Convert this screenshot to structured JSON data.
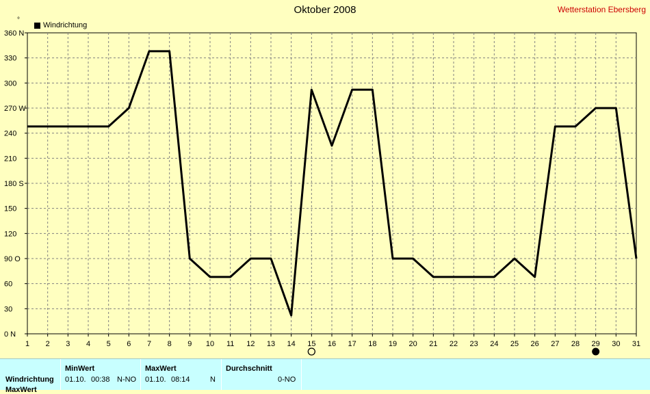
{
  "header": {
    "title": "Oktober 2008",
    "station": "Wetterstation Ebersberg",
    "unit_symbol": "°"
  },
  "chart_data": {
    "type": "line",
    "series": [
      {
        "name": "Windrichtung",
        "color": "#000000",
        "x": [
          1,
          2,
          3,
          4,
          5,
          6,
          7,
          8,
          9,
          10,
          11,
          12,
          13,
          14,
          15,
          16,
          17,
          18,
          19,
          20,
          21,
          22,
          23,
          24,
          25,
          26,
          27,
          28,
          29,
          30,
          31
        ],
        "values": [
          248,
          248,
          248,
          248,
          248,
          270,
          338,
          338,
          90,
          68,
          68,
          90,
          90,
          22,
          292,
          225,
          292,
          292,
          90,
          90,
          68,
          68,
          68,
          68,
          90,
          68,
          248,
          248,
          270,
          270,
          90
        ]
      }
    ],
    "xlim": [
      1,
      31
    ],
    "ylim": [
      0,
      360
    ],
    "y_ticks": [
      "0 N",
      "30",
      "60",
      "90 O",
      "120",
      "150",
      "180 S",
      "210",
      "240",
      "270 W",
      "300",
      "330",
      "360 N"
    ],
    "y_tick_values": [
      0,
      30,
      60,
      90,
      120,
      150,
      180,
      210,
      240,
      270,
      300,
      330,
      360
    ],
    "x_ticks": [
      "1",
      "2",
      "3",
      "4",
      "5",
      "6",
      "7",
      "8",
      "9",
      "10",
      "11",
      "12",
      "13",
      "14",
      "15",
      "16",
      "17",
      "18",
      "19",
      "20",
      "21",
      "22",
      "23",
      "24",
      "25",
      "26",
      "27",
      "28",
      "29",
      "30",
      "31"
    ],
    "grid": true,
    "moon_phases": [
      {
        "day": 15,
        "phase": "full-moon"
      },
      {
        "day": 29,
        "phase": "new-moon"
      }
    ]
  },
  "footer": {
    "row_label": "Windrichtung",
    "row_label_2": "MaxWert",
    "min_header": "MinWert",
    "min_date": "01.10.",
    "min_time": "00:38",
    "min_value": "N-NO",
    "max_header": "MaxWert",
    "max_date": "01.10.",
    "max_time": "08:14",
    "max_value": "N",
    "avg_header": "Durchschnitt",
    "avg_value": "0-NO"
  }
}
